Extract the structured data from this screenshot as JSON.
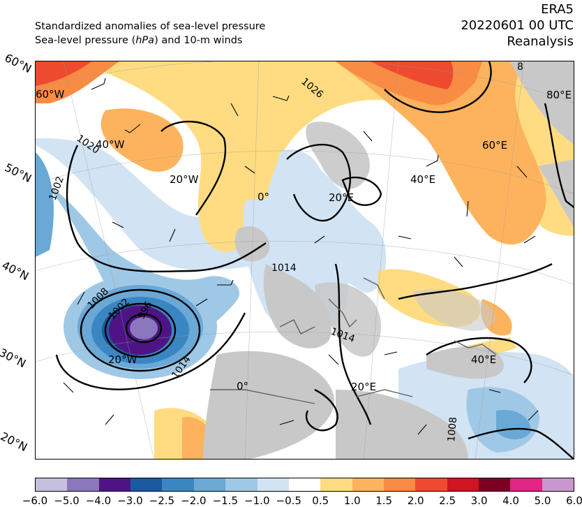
{
  "header": {
    "subtitle_line1": "Standardized anomalies of sea-level pressure",
    "subtitle_line2_pre": "Sea-level pressure (",
    "subtitle_line2_unit": "hPa",
    "subtitle_line2_post": ") and 10-m winds",
    "dataset": "ERA5",
    "datetime": "20220601 00 UTC",
    "product": "Reanalysis"
  },
  "map": {
    "lat_labels": [
      "60°N",
      "50°N",
      "40°N",
      "30°N",
      "20°N"
    ],
    "lon_labels": [
      "60°W",
      "40°W",
      "20°W",
      "0°",
      "20°E",
      "40°E",
      "60°E",
      "80°E",
      "20°W",
      "0°",
      "20°E",
      "40°E"
    ],
    "contour_labels": [
      "1026",
      "1020",
      "1002",
      "1008",
      "1002",
      "996",
      "1014",
      "1014",
      "1014",
      "1008",
      "8"
    ],
    "colors": {
      "land_grey": "#c8c8c8",
      "coast": "#606060",
      "contour": "#000000"
    }
  },
  "colorbar": {
    "ticks": [
      "−6.0",
      "−5.0",
      "−4.0",
      "−3.0",
      "−2.5",
      "−2.0",
      "−1.5",
      "−1.0",
      "−0.5",
      "0.5",
      "1.0",
      "1.5",
      "2.0",
      "2.5",
      "3.0",
      "4.0",
      "5.0",
      "6.0"
    ],
    "colors": [
      "#c7bfe0",
      "#8a77be",
      "#4e1486",
      "#1c5aa0",
      "#3a86c3",
      "#6aa8d6",
      "#9fc8e6",
      "#d2e3f3",
      "#ffffff",
      "#ffdc82",
      "#fdb35d",
      "#f88c44",
      "#ee4a2f",
      "#cf1424",
      "#7c0022",
      "#e02582",
      "#c997d0"
    ]
  }
}
